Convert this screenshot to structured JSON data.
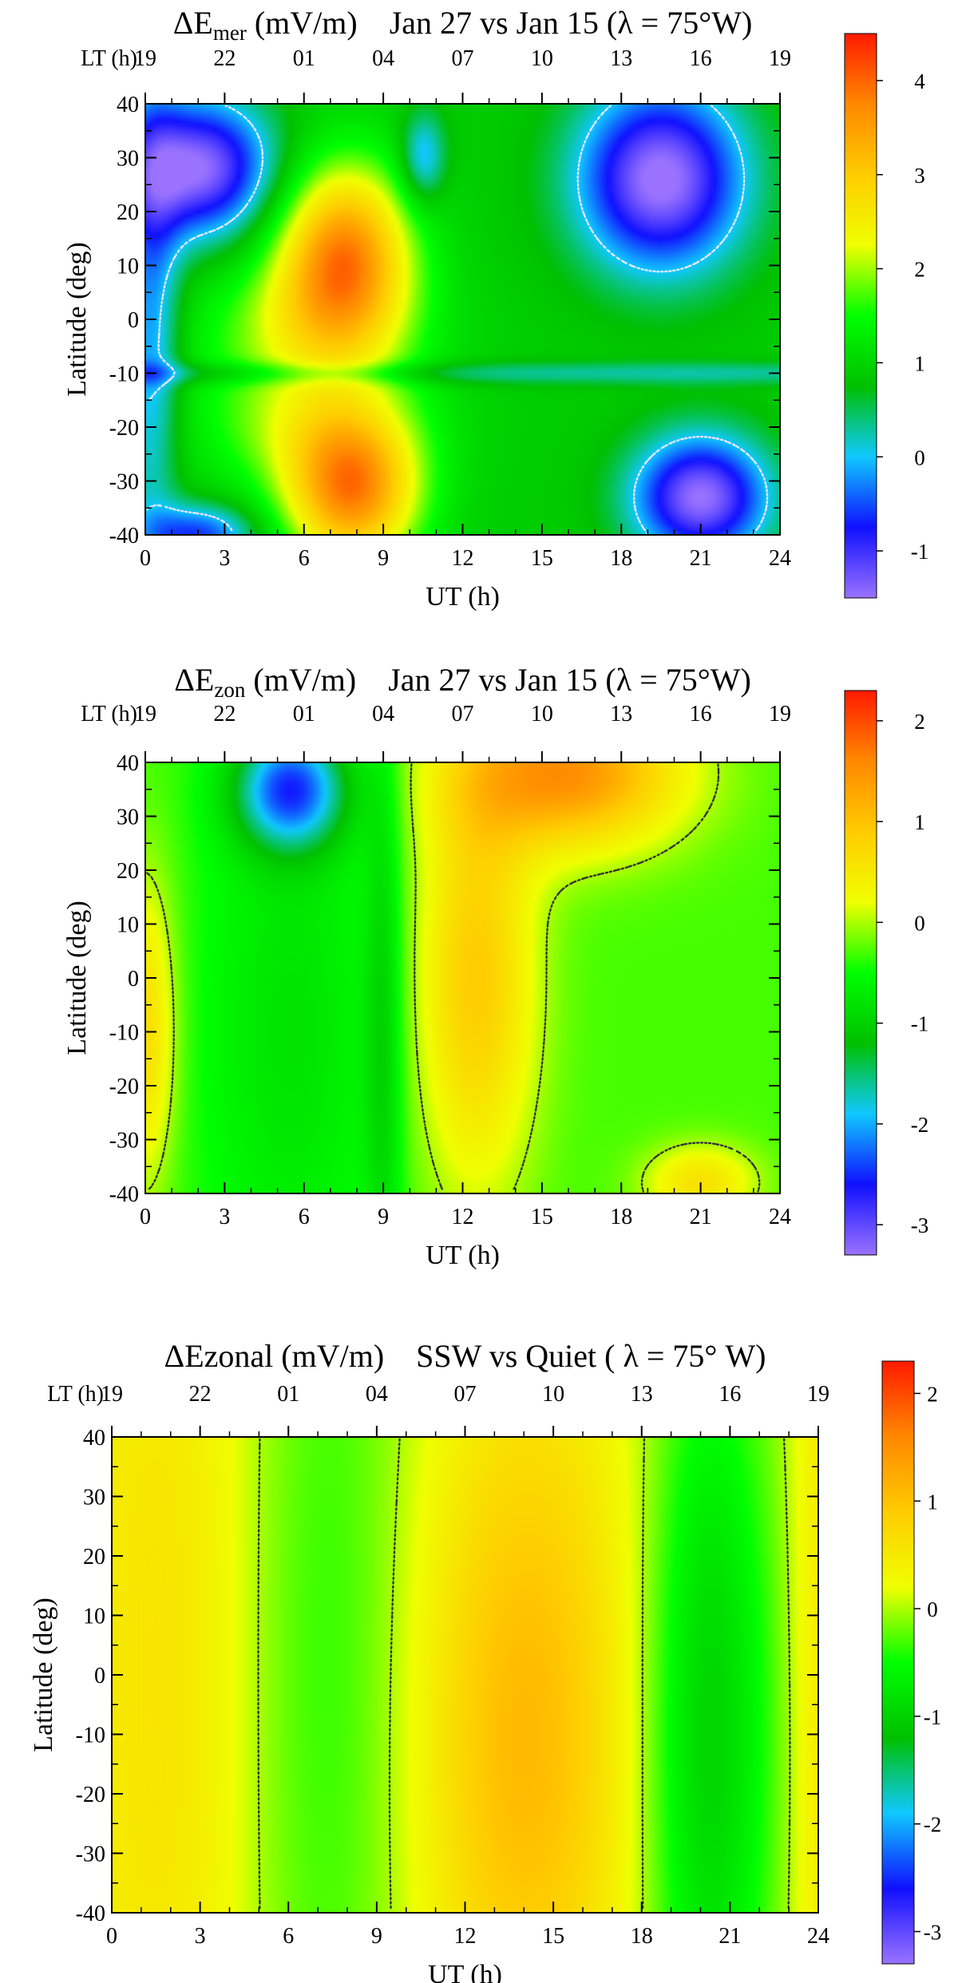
{
  "palette": [
    "#9a72ff",
    "#1010ff",
    "#10c8ff",
    "#00c000",
    "#00ff00",
    "#f0ff00",
    "#ffcc00",
    "#ff8800",
    "#ff1a00"
  ],
  "contour_color_1": "#e8e8ff",
  "contour_color_2": "#333333",
  "chart_data": [
    {
      "type": "heatmap",
      "title_main": "ΔE",
      "title_sub": "mer",
      "title_unit": " (mV/m)",
      "title_rest": "Jan 27 vs Jan 15 (λ = 75°W)",
      "xlabel": "UT (h)",
      "ylabel": "Latitude (deg)",
      "lt_label": "LT (h)",
      "x_ticks": [
        "0",
        "3",
        "6",
        "9",
        "12",
        "15",
        "18",
        "21",
        "24"
      ],
      "lt_ticks": [
        "19",
        "22",
        "01",
        "04",
        "07",
        "10",
        "13",
        "16",
        "19"
      ],
      "y_ticks": [
        "40",
        "30",
        "20",
        "10",
        "0",
        "-10",
        "-20",
        "-30",
        "-40"
      ],
      "xlim": [
        0,
        24
      ],
      "ylim": [
        -40,
        40
      ],
      "colorbar_ticks": [
        "4",
        "3",
        "2",
        "1",
        "0",
        "-1"
      ],
      "colorbar_values": [
        4,
        3,
        2,
        1,
        0,
        -1
      ],
      "zlim": [
        -1.5,
        4.5
      ],
      "contour_level": 0,
      "contour_style": "white-dotted",
      "features": [
        {
          "ut": 7.5,
          "lat": 12,
          "su": 1.8,
          "sl": 12,
          "amp": 2.8
        },
        {
          "ut": 7.8,
          "lat": -32,
          "su": 1.8,
          "sl": 10,
          "amp": 2.8
        },
        {
          "ut": 6.0,
          "lat": -2,
          "su": 3.0,
          "sl": 9,
          "amp": 1.0
        },
        {
          "ut": 6.0,
          "lat": -20,
          "su": 3.0,
          "sl": 8,
          "amp": 0.9
        },
        {
          "ut": 2.0,
          "lat": 28,
          "su": 2.0,
          "sl": 9,
          "amp": -2.4
        },
        {
          "ut": 0.2,
          "lat": 0,
          "su": 0.8,
          "sl": 30,
          "amp": -1.2
        },
        {
          "ut": 2.0,
          "lat": -40,
          "su": 1.5,
          "sl": 4,
          "amp": -1.5
        },
        {
          "ut": 19.5,
          "lat": 26,
          "su": 2.2,
          "sl": 12,
          "amp": -2.5
        },
        {
          "ut": 21.0,
          "lat": -33,
          "su": 1.8,
          "sl": 8,
          "amp": -2.4
        },
        {
          "ut": 10.5,
          "lat": 30,
          "su": 0.6,
          "sl": 6,
          "amp": -1.1
        },
        {
          "ut": 12,
          "lat": -10,
          "su": 60,
          "sl": 1.5,
          "amp": -0.6
        }
      ],
      "base": 0.9
    },
    {
      "type": "heatmap",
      "title_main": "ΔE",
      "title_sub": "zon",
      "title_unit": " (mV/m)",
      "title_rest": "Jan 27 vs Jan 15 (λ = 75°W)",
      "xlabel": "UT (h)",
      "ylabel": "Latitude (deg)",
      "lt_label": "LT (h)",
      "x_ticks": [
        "0",
        "3",
        "6",
        "9",
        "12",
        "15",
        "18",
        "21",
        "24"
      ],
      "lt_ticks": [
        "19",
        "22",
        "01",
        "04",
        "07",
        "10",
        "13",
        "16",
        "19"
      ],
      "y_ticks": [
        "40",
        "30",
        "20",
        "10",
        "0",
        "-10",
        "-20",
        "-30",
        "-40"
      ],
      "xlim": [
        0,
        24
      ],
      "ylim": [
        -40,
        40
      ],
      "colorbar_ticks": [
        "2",
        "1",
        "0",
        "-1",
        "-2",
        "-3"
      ],
      "colorbar_values": [
        2,
        1,
        0,
        -1,
        -2,
        -3
      ],
      "zlim": [
        -3.3,
        2.3
      ],
      "contour_level": 0,
      "contour_style": "black-dotted",
      "features": [
        {
          "ut": 5.5,
          "lat": 35,
          "su": 1.5,
          "sl": 8,
          "amp": -2.0
        },
        {
          "ut": 5.5,
          "lat": -10,
          "su": 2.5,
          "sl": 40,
          "amp": -0.5
        },
        {
          "ut": 9,
          "lat": -10,
          "su": 0.5,
          "sl": 40,
          "amp": -0.6
        },
        {
          "ut": 12.5,
          "lat": 0,
          "su": 1.6,
          "sl": 28,
          "amp": 1.2
        },
        {
          "ut": 16,
          "lat": 38,
          "su": 3.0,
          "sl": 10,
          "amp": 1.8
        },
        {
          "ut": 21,
          "lat": -38,
          "su": 1.5,
          "sl": 5,
          "amp": 0.9
        },
        {
          "ut": 0,
          "lat": -10,
          "su": 0.8,
          "sl": 20,
          "amp": 1.0
        }
      ],
      "base": -0.3
    },
    {
      "type": "heatmap",
      "title_main": "ΔEzonal",
      "title_sub": "",
      "title_unit": " (mV/m)",
      "title_rest": "SSW vs Quiet ( λ = 75° W)",
      "xlabel": "UT (h)",
      "ylabel": "Latitude (deg)",
      "lt_label": "LT (h)",
      "x_ticks": [
        "0",
        "3",
        "6",
        "9",
        "12",
        "15",
        "18",
        "21",
        "24"
      ],
      "lt_ticks": [
        "19",
        "22",
        "01",
        "04",
        "07",
        "10",
        "13",
        "16",
        "19"
      ],
      "y_ticks": [
        "40",
        "30",
        "20",
        "10",
        "0",
        "-10",
        "-20",
        "-30",
        "-40"
      ],
      "xlim": [
        0,
        24
      ],
      "ylim": [
        -40,
        40
      ],
      "colorbar_ticks": [
        "2",
        "1",
        "0",
        "-1",
        "-2",
        "-3"
      ],
      "colorbar_values": [
        2,
        1,
        0,
        -1,
        -2,
        -3
      ],
      "zlim": [
        -3.3,
        2.3
      ],
      "contour_level": 0,
      "contour_style": "black-dotted",
      "features": [
        {
          "ut": 1.8,
          "lat": 0,
          "su": 2.5,
          "sl": 80,
          "amp": 0.5
        },
        {
          "ut": 7.2,
          "lat": 0,
          "su": 2.4,
          "sl": 80,
          "amp": -0.5
        },
        {
          "ut": 14,
          "lat": -10,
          "su": 2.6,
          "sl": 45,
          "amp": 1.0
        },
        {
          "ut": 20.3,
          "lat": -10,
          "su": 1.6,
          "sl": 50,
          "amp": -1.1
        },
        {
          "ut": 24,
          "lat": 0,
          "su": 0.7,
          "sl": 80,
          "amp": 0.4
        }
      ],
      "base": 0.1
    }
  ]
}
